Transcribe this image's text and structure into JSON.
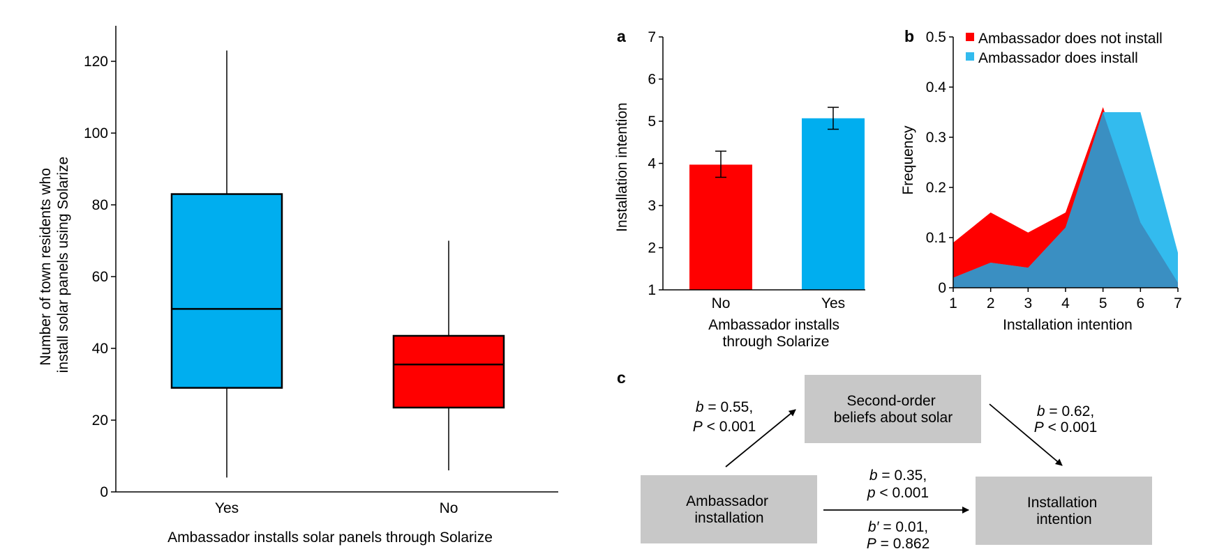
{
  "colors": {
    "red": "#ff0000",
    "blue": "#00aeef",
    "blue_light": "#33bbee",
    "overlap": "#3a8fc2",
    "box_gray": "#c8c8c8"
  },
  "chart_data": [
    {
      "id": "boxplot",
      "type": "box",
      "categories": [
        "Yes",
        "No"
      ],
      "xlabel": "Ambassador installs solar panels through Solarize",
      "ylabel_lines": [
        "Number of town residents who",
        "install solar panels using Solarize"
      ],
      "ylim": [
        0,
        130
      ],
      "yticks": [
        "0",
        "20",
        "40",
        "60",
        "80",
        "100",
        "120"
      ],
      "series": [
        {
          "category": "Yes",
          "min": 4,
          "q1": 29,
          "median": 51,
          "q3": 83,
          "max": 123,
          "color": "#00aeef"
        },
        {
          "category": "No",
          "min": 6,
          "q1": 23.5,
          "median": 35.5,
          "q3": 43.5,
          "max": 70,
          "color": "#ff0000"
        }
      ]
    },
    {
      "id": "panel-a",
      "panel_label": "a",
      "type": "bar",
      "categories": [
        "No",
        "Yes"
      ],
      "values": [
        3.97,
        5.07
      ],
      "error": [
        [
          3.67,
          4.29
        ],
        [
          4.81,
          5.33
        ]
      ],
      "colors": [
        "#ff0000",
        "#00aeef"
      ],
      "xlabel_lines": [
        "Ambassador installs",
        "through Solarize"
      ],
      "ylabel": "Installation intention",
      "ylim": [
        1,
        7
      ],
      "yticks": [
        "1",
        "2",
        "3",
        "4",
        "5",
        "6",
        "7"
      ]
    },
    {
      "id": "panel-b",
      "panel_label": "b",
      "type": "area",
      "x": [
        1,
        2,
        3,
        4,
        5,
        6,
        7
      ],
      "xticks": [
        "1",
        "2",
        "3",
        "4",
        "5",
        "6",
        "7"
      ],
      "series": [
        {
          "name": "Ambassador does not install",
          "values": [
            0.09,
            0.15,
            0.11,
            0.15,
            0.36,
            0.13,
            0.01
          ],
          "color": "#ff0000"
        },
        {
          "name": "Ambassador does install",
          "values": [
            0.02,
            0.05,
            0.04,
            0.12,
            0.35,
            0.35,
            0.07
          ],
          "color": "#33bbee"
        }
      ],
      "xlabel": "Installation intention",
      "ylabel": "Frequency",
      "xlim": [
        1,
        7
      ],
      "ylim": [
        0,
        0.5
      ],
      "yticks": [
        "0",
        "0.1",
        "0.2",
        "0.3",
        "0.4",
        "0.5"
      ],
      "legend_position": "top"
    }
  ],
  "diagram": {
    "panel_label": "c",
    "nodes": {
      "mediator": [
        "Second-order",
        "beliefs about solar"
      ],
      "source": [
        "Ambassador",
        "installation"
      ],
      "target": [
        "Installation",
        "intention"
      ]
    },
    "paths": {
      "a": {
        "b": "b",
        "b_val": " = 0.55,",
        "p": "P",
        "p_val": " < 0.001"
      },
      "b": {
        "b": "b",
        "b_val": " = 0.62,",
        "p": "P",
        "p_val": " < 0.001"
      },
      "c_total": {
        "b": "b",
        "b_val": " = 0.35,",
        "p": "p",
        "p_val": " < 0.001"
      },
      "c_direct": {
        "b": "b′",
        "b_val": " = 0.01,",
        "p": "P",
        "p_val": " = 0.862"
      }
    }
  }
}
